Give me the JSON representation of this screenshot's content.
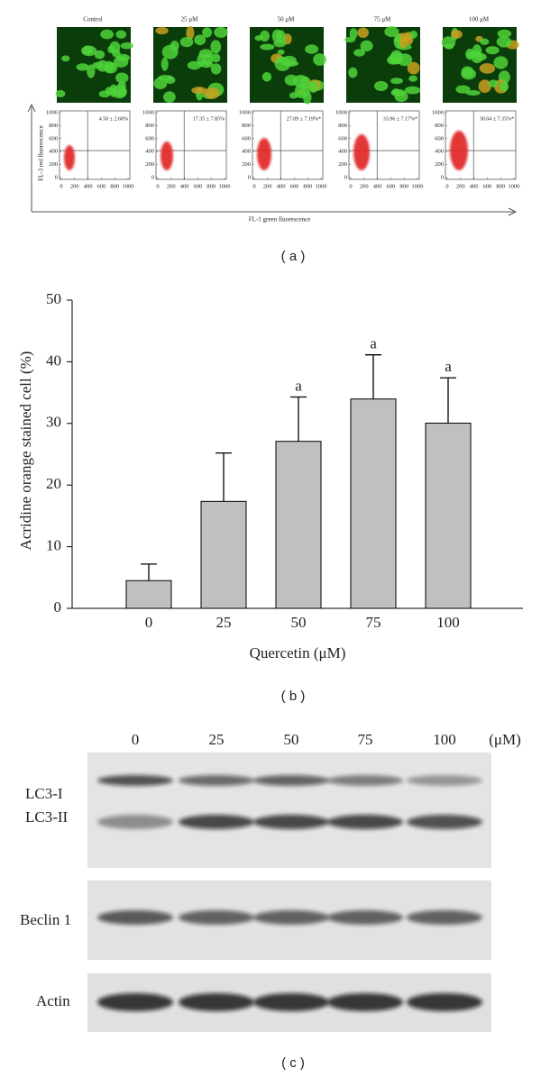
{
  "panel_a": {
    "conditions": [
      "Control",
      "25 μM",
      "50 μM",
      "75 μM",
      "100 μM"
    ],
    "quadrant_labels": [
      "4.50 ± 2.68%",
      "17.35 ± 7.85%",
      "27.09 ± 7.19%*",
      "33.96 ± 7.17%*",
      "30.04 ± 7.35%*"
    ],
    "plot_ticks": [
      0,
      200,
      400,
      600,
      800,
      1000
    ],
    "x_axis_label": "FL-1 green fluorescence",
    "y_axis_label": "FL-3 red fluorescence",
    "caption": "( a )"
  },
  "chart_data": {
    "type": "bar",
    "categories": [
      "0",
      "25",
      "50",
      "75",
      "100"
    ],
    "values": [
      4.5,
      17.35,
      27.09,
      33.96,
      30.04
    ],
    "errors": [
      2.68,
      7.85,
      7.19,
      7.17,
      7.35
    ],
    "annotations": [
      null,
      null,
      "a",
      "a",
      "a"
    ],
    "color": "#c0c0c0",
    "x_label": "Quercetin (μM)",
    "y_label": "Acridine orange stained cell (%)",
    "ylim": [
      0,
      50
    ],
    "yticks": [
      0,
      10,
      20,
      30,
      40,
      50
    ],
    "caption": "( b )"
  },
  "panel_c": {
    "lanes": [
      "0",
      "25",
      "50",
      "75",
      "100"
    ],
    "unit": "(μM)",
    "band_labels": [
      "LC3-I",
      "LC3-II",
      "Beclin 1",
      "Actin"
    ],
    "caption": "( c )"
  }
}
